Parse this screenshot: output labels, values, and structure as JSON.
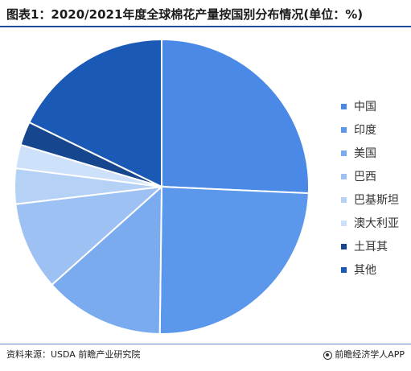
{
  "header": {
    "title": "图表1：2020/2021年度全球棉花产量按国别分布情况(单位：%)"
  },
  "footer": {
    "source": "资料来源：USDA 前瞻产业研究院",
    "brand": "前瞻经济学人APP"
  },
  "chart_data": {
    "type": "pie",
    "title": "图表1：2020/2021年度全球棉花产量按国别分布情况(单位：%)",
    "categories": [
      "中国",
      "印度",
      "美国",
      "巴西",
      "巴基斯坦",
      "澳大利亚",
      "土耳其",
      "其他"
    ],
    "values": [
      25.7,
      24.5,
      13.2,
      9.7,
      3.9,
      2.6,
      2.6,
      17.8
    ],
    "colors": [
      "#4a8ae6",
      "#5b97ea",
      "#7aabef",
      "#9ec1f3",
      "#b5d2f6",
      "#cde2fa",
      "#16468e",
      "#1b59b7"
    ],
    "legend_position": "right"
  }
}
